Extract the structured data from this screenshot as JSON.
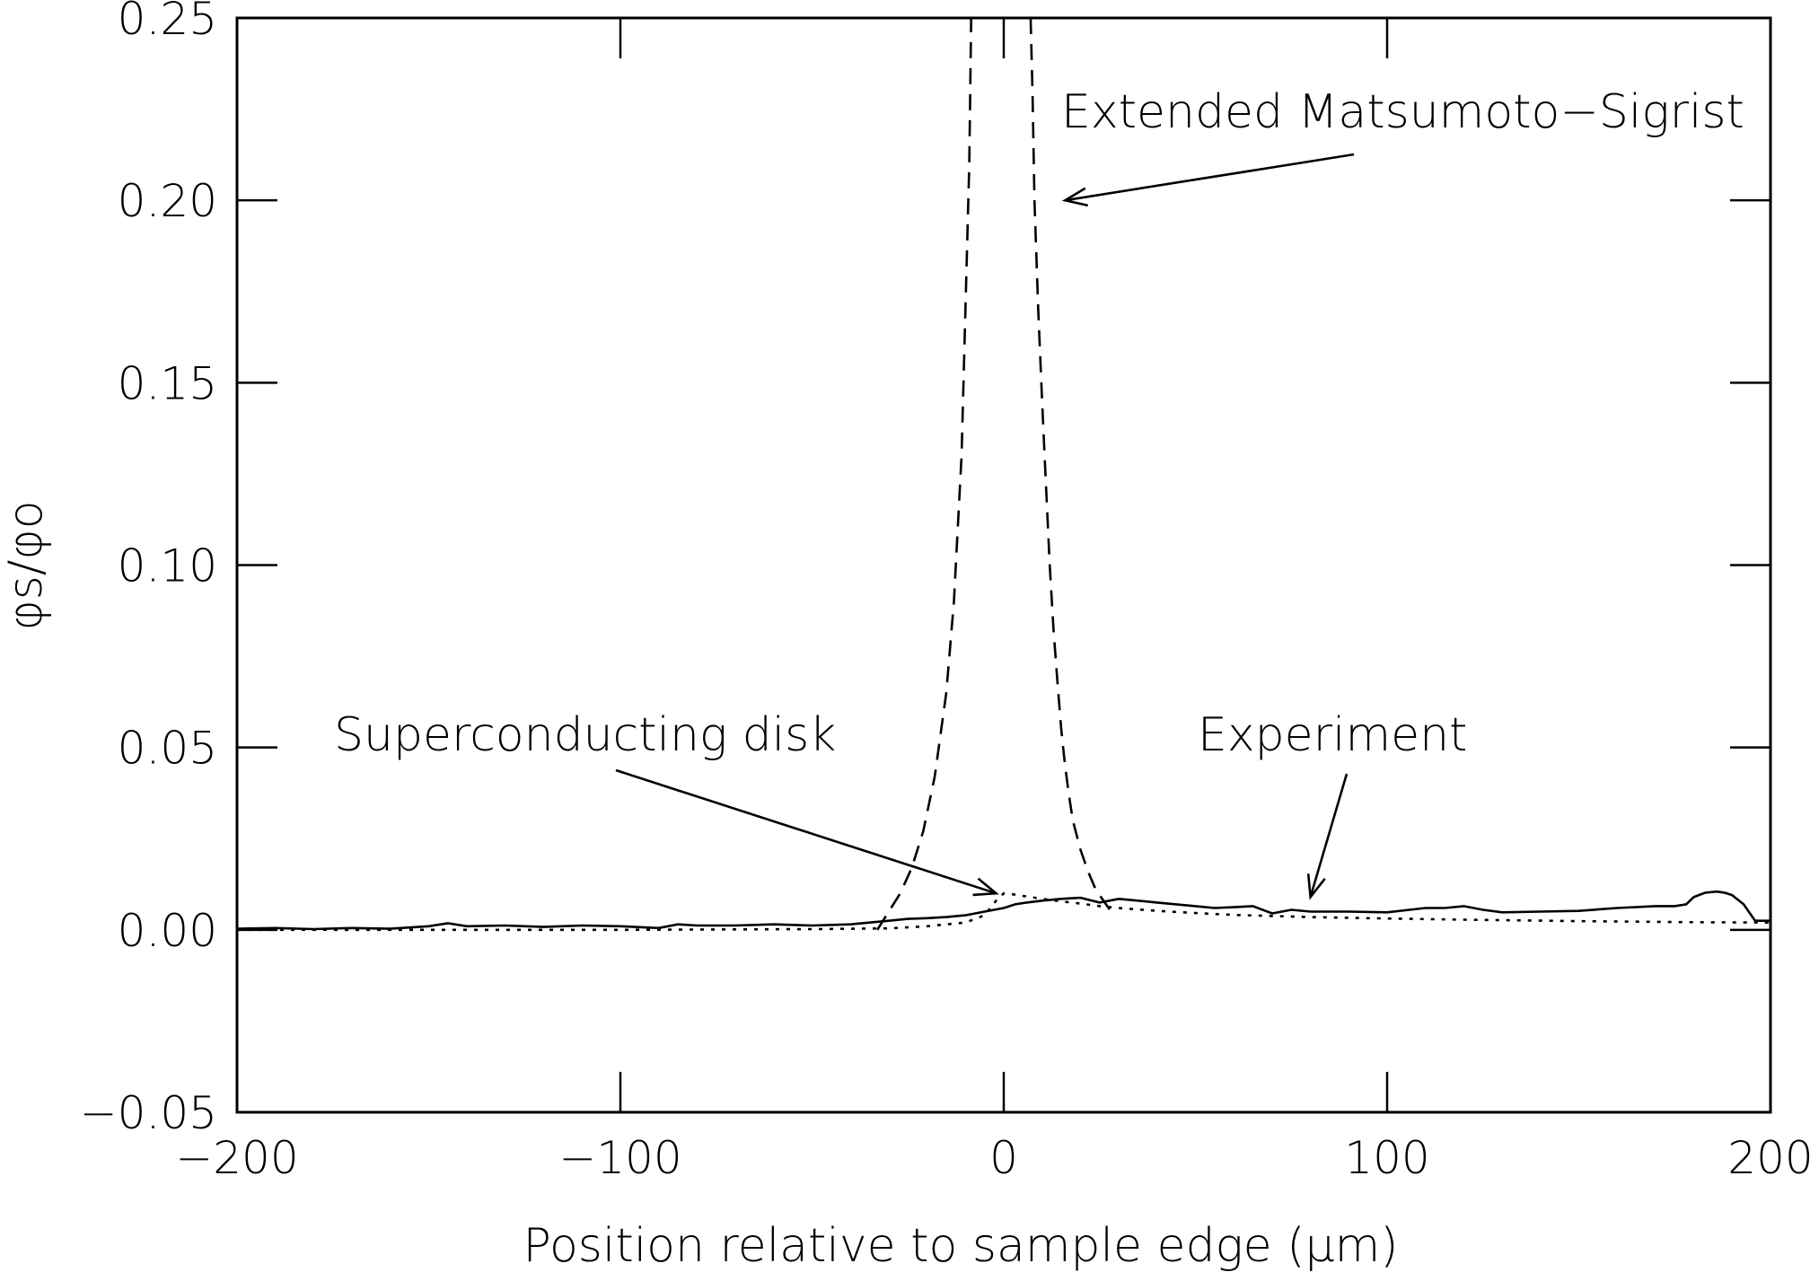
{
  "chart_data": {
    "type": "line",
    "xlabel": "Position relative to sample edge (μm)",
    "ylabel": "φs/φo",
    "xlim": [
      -200,
      200
    ],
    "ylim": [
      -0.05,
      0.25
    ],
    "x_ticks": [
      -200,
      -100,
      0,
      100,
      200
    ],
    "x_tick_labels": [
      "−200",
      "−100",
      "0",
      "100",
      "200"
    ],
    "y_ticks": [
      -0.05,
      0.0,
      0.05,
      0.1,
      0.15,
      0.2,
      0.25
    ],
    "y_tick_labels": [
      "−0.05",
      "0.00",
      "0.05",
      "0.10",
      "0.15",
      "0.20",
      "0.25"
    ],
    "grid": false,
    "legend": "none",
    "annotations": [
      {
        "text": "Extended Matsumoto−Sigrist",
        "x": 16,
        "y": 0.2
      },
      {
        "text": "Superconducting disk",
        "x": -2,
        "y": 0.01
      },
      {
        "text": "Experiment",
        "x": 80,
        "y": 0.009
      }
    ],
    "series": [
      {
        "style": "solid",
        "x": [
          -200,
          -190,
          -180,
          -170,
          -160,
          -150,
          -145,
          -140,
          -130,
          -120,
          -110,
          -100,
          -90,
          -85,
          -80,
          -70,
          -60,
          -50,
          -40,
          -35,
          -30,
          -25,
          -20,
          -15,
          -10,
          -5,
          0,
          3,
          6,
          10,
          15,
          20,
          25,
          30,
          35,
          40,
          45,
          50,
          55,
          60,
          65,
          70,
          75,
          80,
          90,
          100,
          110,
          115,
          120,
          125,
          130,
          140,
          150,
          160,
          170,
          175,
          178,
          180,
          183,
          186,
          188,
          190,
          193,
          196,
          200
        ],
        "y": [
          0.0003,
          0.0005,
          0.0002,
          0.0005,
          0.0003,
          0.001,
          0.0018,
          0.001,
          0.0012,
          0.0008,
          0.0012,
          0.001,
          0.0005,
          0.0015,
          0.0012,
          0.0012,
          0.0015,
          0.0012,
          0.0015,
          0.002,
          0.0025,
          0.003,
          0.0032,
          0.0035,
          0.004,
          0.005,
          0.006,
          0.007,
          0.0075,
          0.008,
          0.0085,
          0.0088,
          0.0075,
          0.0085,
          0.008,
          0.0075,
          0.007,
          0.0065,
          0.006,
          0.0062,
          0.0065,
          0.0045,
          0.0055,
          0.005,
          0.005,
          0.0048,
          0.006,
          0.006,
          0.0065,
          0.0055,
          0.0048,
          0.005,
          0.0052,
          0.006,
          0.0065,
          0.0065,
          0.007,
          0.009,
          0.0102,
          0.0105,
          0.0102,
          0.0095,
          0.007,
          0.0025,
          0.0025
        ]
      },
      {
        "style": "dashed",
        "x": [
          -33,
          -30,
          -27,
          -24,
          -21,
          -18,
          -15,
          -13,
          -11,
          -10,
          -9,
          -8.5
        ],
        "y": [
          0.0,
          0.005,
          0.01,
          0.017,
          0.027,
          0.042,
          0.065,
          0.09,
          0.13,
          0.17,
          0.21,
          0.25
        ]
      },
      {
        "style": "dashed",
        "x": [
          7,
          7.5,
          8,
          9,
          10,
          11,
          12,
          13,
          14,
          15,
          16,
          17,
          18,
          20,
          22,
          24,
          26,
          28
        ],
        "y": [
          0.25,
          0.23,
          0.2,
          0.17,
          0.145,
          0.122,
          0.1,
          0.082,
          0.068,
          0.055,
          0.045,
          0.037,
          0.03,
          0.022,
          0.016,
          0.011,
          0.008,
          0.005
        ]
      },
      {
        "style": "dotted",
        "x": [
          -200,
          -150,
          -100,
          -50,
          -30,
          -20,
          -10,
          -5,
          -2,
          0,
          2,
          5,
          10,
          15,
          20,
          25,
          30,
          40,
          50,
          60,
          80,
          100,
          120,
          150,
          180,
          200
        ],
        "y": [
          0.0,
          0.0,
          0.0,
          0.0002,
          0.0004,
          0.001,
          0.002,
          0.004,
          0.008,
          0.01,
          0.0098,
          0.0093,
          0.0085,
          0.0078,
          0.0072,
          0.0065,
          0.006,
          0.0052,
          0.0046,
          0.0041,
          0.0035,
          0.0031,
          0.0028,
          0.0024,
          0.0021,
          0.002
        ]
      }
    ]
  }
}
